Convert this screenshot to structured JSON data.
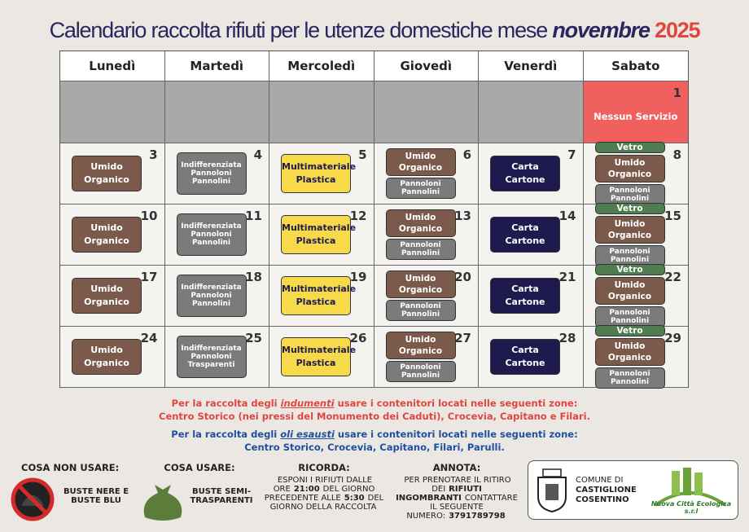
{
  "title": {
    "main": "Calendario raccolta rifiuti per le utenze domestiche mese",
    "month": "novembre",
    "year": "2025"
  },
  "days": [
    "Lunedì",
    "Martedì",
    "Mercoledì",
    "Giovedì",
    "Venerdì",
    "Sabato"
  ],
  "weeks": [
    [
      null,
      null,
      null,
      null,
      null,
      {
        "day": 1,
        "note": "Nessun Servizio",
        "color": "#f0605e"
      }
    ],
    [
      {
        "day": 3,
        "items": [
          {
            "lines": [
              "Umido",
              "Organico"
            ],
            "color": "#7b5a4c"
          }
        ]
      },
      {
        "day": 4,
        "items": [
          {
            "lines": [
              "Indifferenziata",
              "Pannoloni",
              "Pannolini"
            ],
            "color": "#7b7b7b"
          }
        ]
      },
      {
        "day": 5,
        "items": [
          {
            "lines": [
              "Multimateriale",
              "Plastica"
            ],
            "color": "#f7da4a"
          }
        ]
      },
      {
        "day": 6,
        "items": [
          {
            "lines": [
              "Umido",
              "Organico"
            ],
            "color": "#7b5a4c"
          },
          {
            "lines": [
              "Pannoloni",
              "Pannolini"
            ],
            "color": "#7b7b7b"
          }
        ]
      },
      {
        "day": 7,
        "items": [
          {
            "lines": [
              "Carta",
              "Cartone"
            ],
            "color": "#1e1a4e"
          }
        ]
      },
      {
        "day": 8,
        "items": [
          {
            "lines": [
              "Vetro"
            ],
            "color": "#4f7d4f"
          },
          {
            "lines": [
              "Umido",
              "Organico"
            ],
            "color": "#7b5a4c"
          },
          {
            "lines": [
              "Pannoloni",
              "Pannolini"
            ],
            "color": "#7b7b7b"
          }
        ]
      }
    ],
    [
      {
        "day": 10,
        "items": [
          {
            "lines": [
              "Umido",
              "Organico"
            ],
            "color": "#7b5a4c"
          }
        ]
      },
      {
        "day": 11,
        "items": [
          {
            "lines": [
              "Indifferenziata",
              "Pannoloni",
              "Pannolini"
            ],
            "color": "#7b7b7b"
          }
        ]
      },
      {
        "day": 12,
        "items": [
          {
            "lines": [
              "Multimateriale",
              "Plastica"
            ],
            "color": "#f7da4a"
          }
        ]
      },
      {
        "day": 13,
        "items": [
          {
            "lines": [
              "Umido",
              "Organico"
            ],
            "color": "#7b5a4c"
          },
          {
            "lines": [
              "Pannoloni",
              "Pannolini"
            ],
            "color": "#7b7b7b"
          }
        ]
      },
      {
        "day": 14,
        "items": [
          {
            "lines": [
              "Carta",
              "Cartone"
            ],
            "color": "#1e1a4e"
          }
        ]
      },
      {
        "day": 15,
        "items": [
          {
            "lines": [
              "Vetro"
            ],
            "color": "#4f7d4f"
          },
          {
            "lines": [
              "Umido",
              "Organico"
            ],
            "color": "#7b5a4c"
          },
          {
            "lines": [
              "Pannoloni",
              "Pannolini"
            ],
            "color": "#7b7b7b"
          }
        ]
      }
    ],
    [
      {
        "day": 17,
        "items": [
          {
            "lines": [
              "Umido",
              "Organico"
            ],
            "color": "#7b5a4c"
          }
        ]
      },
      {
        "day": 18,
        "items": [
          {
            "lines": [
              "Indifferenziata",
              "Pannoloni",
              "Pannolini"
            ],
            "color": "#7b7b7b"
          }
        ]
      },
      {
        "day": 19,
        "items": [
          {
            "lines": [
              "Multimateriale",
              "Plastica"
            ],
            "color": "#f7da4a"
          }
        ]
      },
      {
        "day": 20,
        "items": [
          {
            "lines": [
              "Umido",
              "Organico"
            ],
            "color": "#7b5a4c"
          },
          {
            "lines": [
              "Pannoloni",
              "Pannolini"
            ],
            "color": "#7b7b7b"
          }
        ]
      },
      {
        "day": 21,
        "items": [
          {
            "lines": [
              "Carta",
              "Cartone"
            ],
            "color": "#1e1a4e"
          }
        ]
      },
      {
        "day": 22,
        "items": [
          {
            "lines": [
              "Vetro"
            ],
            "color": "#4f7d4f"
          },
          {
            "lines": [
              "Umido",
              "Organico"
            ],
            "color": "#7b5a4c"
          },
          {
            "lines": [
              "Pannoloni",
              "Pannolini"
            ],
            "color": "#7b7b7b"
          }
        ]
      }
    ],
    [
      {
        "day": 24,
        "items": [
          {
            "lines": [
              "Umido",
              "Organico"
            ],
            "color": "#7b5a4c"
          }
        ]
      },
      {
        "day": 25,
        "items": [
          {
            "lines": [
              "Indifferenziata",
              "Pannoloni",
              "Trasparenti"
            ],
            "color": "#7b7b7b"
          }
        ]
      },
      {
        "day": 26,
        "items": [
          {
            "lines": [
              "Multimateriale",
              "Plastica"
            ],
            "color": "#f7da4a"
          }
        ]
      },
      {
        "day": 27,
        "items": [
          {
            "lines": [
              "Umido",
              "Organico"
            ],
            "color": "#7b5a4c"
          },
          {
            "lines": [
              "Pannoloni",
              "Pannolini"
            ],
            "color": "#7b7b7b"
          }
        ]
      },
      {
        "day": 28,
        "items": [
          {
            "lines": [
              "Carta",
              "Cartone"
            ],
            "color": "#1e1a4e"
          }
        ]
      },
      {
        "day": 29,
        "items": [
          {
            "lines": [
              "Vetro"
            ],
            "color": "#4f7d4f"
          },
          {
            "lines": [
              "Umido",
              "Organico"
            ],
            "color": "#7b5a4c"
          },
          {
            "lines": [
              "Pannoloni",
              "Pannolini"
            ],
            "color": "#7b7b7b"
          }
        ]
      }
    ]
  ],
  "notes": [
    {
      "before": "Per la raccolta degli",
      "emphasis": "indumenti",
      "after": "usare i contenitori locati nelle seguenti zone:",
      "zones": "Centro Storico (nei pressi del Monumento dei Caduti), Crocevia, Capitano e Filari.",
      "color": "#e0463f"
    },
    {
      "before": "Per la raccolta degli",
      "emphasis": "oli esausti",
      "after": "usare i contenitori locati nelle seguenti zone:",
      "zones": "Centro Storico, Crocevia, Capitano, Filari, Parulli.",
      "color": "#1f4f9f"
    }
  ],
  "footer": {
    "dont": {
      "title": "COSA NON USARE:",
      "text": "BUSTE NERE E BUSTE BLU"
    },
    "do": {
      "title": "COSA USARE:",
      "text": "BUSTE SEMI-TRASPARENTI"
    },
    "remember": {
      "title": "RICORDA:",
      "segments": [
        {
          "text": "ESPONI I RIFIUTI DALLE ORE"
        },
        {
          "text": "21:00",
          "bold": true
        },
        {
          "text": "DEL GIORNO PRECEDENTE ALLE"
        },
        {
          "text": "5:30",
          "bold": true
        },
        {
          "text": "DEL GIORNO DELLA RACCOLTA"
        }
      ]
    },
    "note": {
      "title": "ANNOTA:",
      "segments": [
        {
          "text": "PER PRENOTARE IL RITIRO DEI"
        },
        {
          "text": "RIFIUTI INGOMBRANTI",
          "bold": true
        },
        {
          "text": "CONTATTARE IL SEGUENTE NUMERO:"
        },
        {
          "text": "3791789798",
          "bold": true
        }
      ]
    },
    "comune": [
      "COMUNE DI",
      "CASTIGLIONE",
      "COSENTINO"
    ],
    "company": "Nuova Città Ecologica s.r.l"
  }
}
